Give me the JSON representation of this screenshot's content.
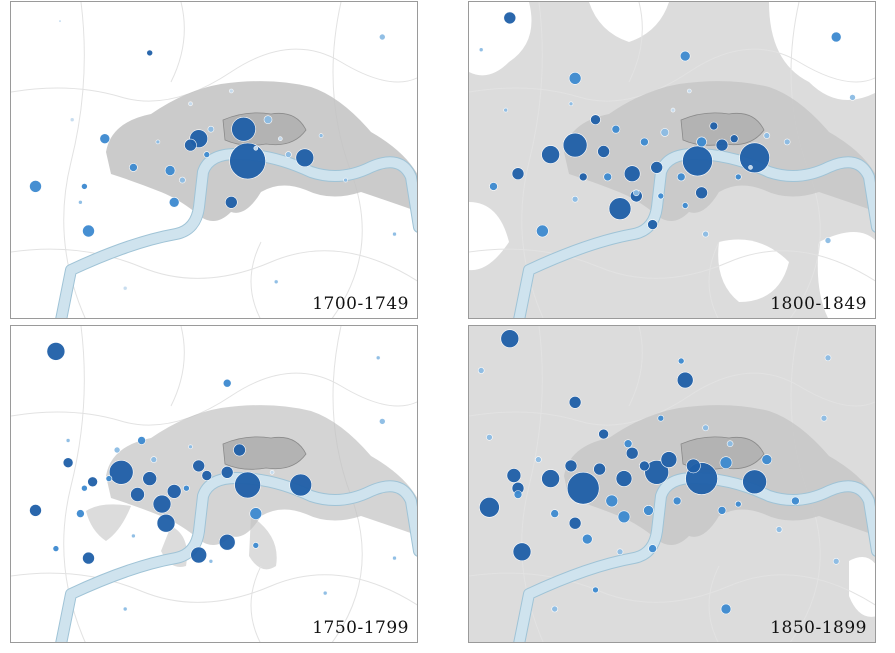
{
  "colors": {
    "river": "#cfe3ee",
    "river_edge": "#9fc3d6",
    "city_core": "#c2c2c2",
    "urban_light": "#dcdcdc",
    "background": "#ffffff",
    "dark_blue": "#1f5fa8",
    "mid_blue": "#3d8ad0",
    "light_blue": "#8cbce4",
    "pale_blue": "#c6dcef"
  },
  "panels": [
    {
      "id": "p1700",
      "label": "1700-1749",
      "urbanization": "low",
      "points": [
        [
          0.34,
          0.16,
          3,
          "dark"
        ],
        [
          0.12,
          0.06,
          1,
          "light"
        ],
        [
          0.58,
          0.5,
          18,
          "dark"
        ],
        [
          0.57,
          0.4,
          12,
          "dark"
        ],
        [
          0.46,
          0.43,
          9,
          "dark"
        ],
        [
          0.44,
          0.45,
          6,
          "dark"
        ],
        [
          0.72,
          0.49,
          9,
          "dark"
        ],
        [
          0.54,
          0.63,
          6,
          "dark"
        ],
        [
          0.23,
          0.43,
          5,
          "mid"
        ],
        [
          0.06,
          0.58,
          6,
          "mid"
        ],
        [
          0.18,
          0.58,
          3,
          "mid"
        ],
        [
          0.19,
          0.72,
          6,
          "mid"
        ],
        [
          0.4,
          0.63,
          5,
          "mid"
        ],
        [
          0.39,
          0.53,
          5,
          "mid"
        ],
        [
          0.3,
          0.52,
          4,
          "mid"
        ],
        [
          0.17,
          0.63,
          2,
          "light"
        ],
        [
          0.42,
          0.56,
          3,
          "light"
        ],
        [
          0.63,
          0.37,
          4,
          "light"
        ],
        [
          0.68,
          0.48,
          3,
          "light"
        ],
        [
          0.6,
          0.46,
          2,
          "pale"
        ],
        [
          0.36,
          0.44,
          2,
          "light"
        ],
        [
          0.49,
          0.4,
          3,
          "light"
        ],
        [
          0.66,
          0.43,
          2,
          "pale"
        ],
        [
          0.82,
          0.56,
          2,
          "light"
        ],
        [
          0.91,
          0.11,
          3,
          "light"
        ],
        [
          0.94,
          0.73,
          2,
          "light"
        ],
        [
          0.65,
          0.88,
          2,
          "light"
        ],
        [
          0.15,
          0.37,
          2,
          "pale"
        ],
        [
          0.28,
          0.9,
          2,
          "pale"
        ],
        [
          0.54,
          0.28,
          2,
          "pale"
        ],
        [
          0.76,
          0.42,
          2,
          "light"
        ],
        [
          0.48,
          0.48,
          3,
          "mid"
        ],
        [
          0.44,
          0.32,
          2,
          "pale"
        ]
      ]
    },
    {
      "id": "p1800",
      "label": "1800-1849",
      "urbanization": "high",
      "points": [
        [
          0.1,
          0.05,
          6,
          "dark"
        ],
        [
          0.9,
          0.11,
          5,
          "mid"
        ],
        [
          0.26,
          0.24,
          6,
          "mid"
        ],
        [
          0.53,
          0.17,
          5,
          "mid"
        ],
        [
          0.26,
          0.45,
          12,
          "dark"
        ],
        [
          0.2,
          0.48,
          9,
          "dark"
        ],
        [
          0.33,
          0.47,
          6,
          "dark"
        ],
        [
          0.4,
          0.54,
          8,
          "dark"
        ],
        [
          0.46,
          0.52,
          6,
          "dark"
        ],
        [
          0.56,
          0.5,
          15,
          "dark"
        ],
        [
          0.7,
          0.49,
          15,
          "dark"
        ],
        [
          0.62,
          0.45,
          6,
          "dark"
        ],
        [
          0.57,
          0.44,
          5,
          "mid"
        ],
        [
          0.37,
          0.65,
          11,
          "dark"
        ],
        [
          0.41,
          0.61,
          6,
          "dark"
        ],
        [
          0.57,
          0.6,
          6,
          "dark"
        ],
        [
          0.45,
          0.7,
          5,
          "dark"
        ],
        [
          0.12,
          0.54,
          6,
          "dark"
        ],
        [
          0.06,
          0.58,
          4,
          "mid"
        ],
        [
          0.18,
          0.72,
          6,
          "mid"
        ],
        [
          0.31,
          0.37,
          5,
          "dark"
        ],
        [
          0.36,
          0.4,
          4,
          "mid"
        ],
        [
          0.43,
          0.44,
          4,
          "mid"
        ],
        [
          0.48,
          0.41,
          4,
          "light"
        ],
        [
          0.6,
          0.39,
          4,
          "dark"
        ],
        [
          0.65,
          0.43,
          4,
          "dark"
        ],
        [
          0.66,
          0.55,
          3,
          "mid"
        ],
        [
          0.52,
          0.55,
          4,
          "mid"
        ],
        [
          0.34,
          0.55,
          4,
          "mid"
        ],
        [
          0.28,
          0.55,
          4,
          "dark"
        ],
        [
          0.47,
          0.61,
          3,
          "mid"
        ],
        [
          0.41,
          0.6,
          3,
          "light"
        ],
        [
          0.26,
          0.62,
          3,
          "light"
        ],
        [
          0.88,
          0.75,
          3,
          "light"
        ],
        [
          0.94,
          0.3,
          3,
          "light"
        ],
        [
          0.03,
          0.15,
          2,
          "light"
        ],
        [
          0.09,
          0.34,
          2,
          "light"
        ],
        [
          0.53,
          0.64,
          3,
          "mid"
        ],
        [
          0.73,
          0.42,
          3,
          "light"
        ],
        [
          0.78,
          0.44,
          3,
          "light"
        ],
        [
          0.54,
          0.28,
          2,
          "pale"
        ],
        [
          0.25,
          0.32,
          2,
          "light"
        ],
        [
          0.5,
          0.34,
          2,
          "pale"
        ],
        [
          0.69,
          0.52,
          2,
          "pale"
        ],
        [
          0.58,
          0.73,
          3,
          "light"
        ]
      ]
    },
    {
      "id": "p1750",
      "label": "1750-1799",
      "urbanization": "medium",
      "points": [
        [
          0.11,
          0.08,
          9,
          "dark"
        ],
        [
          0.9,
          0.1,
          2,
          "light"
        ],
        [
          0.53,
          0.18,
          4,
          "mid"
        ],
        [
          0.91,
          0.3,
          3,
          "light"
        ],
        [
          0.14,
          0.43,
          5,
          "dark"
        ],
        [
          0.27,
          0.46,
          12,
          "dark"
        ],
        [
          0.34,
          0.48,
          7,
          "dark"
        ],
        [
          0.31,
          0.53,
          7,
          "dark"
        ],
        [
          0.37,
          0.56,
          9,
          "dark"
        ],
        [
          0.4,
          0.52,
          7,
          "dark"
        ],
        [
          0.38,
          0.62,
          9,
          "dark"
        ],
        [
          0.46,
          0.44,
          6,
          "dark"
        ],
        [
          0.48,
          0.47,
          5,
          "dark"
        ],
        [
          0.53,
          0.46,
          6,
          "dark"
        ],
        [
          0.58,
          0.5,
          13,
          "dark"
        ],
        [
          0.71,
          0.5,
          11,
          "dark"
        ],
        [
          0.56,
          0.39,
          6,
          "dark"
        ],
        [
          0.6,
          0.59,
          6,
          "mid"
        ],
        [
          0.53,
          0.68,
          8,
          "dark"
        ],
        [
          0.46,
          0.72,
          8,
          "dark"
        ],
        [
          0.2,
          0.49,
          5,
          "dark"
        ],
        [
          0.06,
          0.58,
          6,
          "dark"
        ],
        [
          0.17,
          0.59,
          4,
          "mid"
        ],
        [
          0.19,
          0.73,
          6,
          "dark"
        ],
        [
          0.11,
          0.7,
          3,
          "mid"
        ],
        [
          0.3,
          0.66,
          2,
          "light"
        ],
        [
          0.43,
          0.51,
          3,
          "mid"
        ],
        [
          0.44,
          0.38,
          2,
          "light"
        ],
        [
          0.32,
          0.36,
          4,
          "mid"
        ],
        [
          0.26,
          0.39,
          3,
          "light"
        ],
        [
          0.35,
          0.42,
          3,
          "light"
        ],
        [
          0.49,
          0.74,
          2,
          "light"
        ],
        [
          0.64,
          0.46,
          2,
          "pale"
        ],
        [
          0.14,
          0.36,
          2,
          "light"
        ],
        [
          0.28,
          0.89,
          2,
          "light"
        ],
        [
          0.77,
          0.84,
          2,
          "light"
        ],
        [
          0.94,
          0.73,
          2,
          "light"
        ],
        [
          0.18,
          0.51,
          3,
          "mid"
        ],
        [
          0.24,
          0.48,
          3,
          "mid"
        ],
        [
          0.6,
          0.69,
          3,
          "mid"
        ]
      ]
    },
    {
      "id": "p1850",
      "label": "1850-1899",
      "urbanization": "full",
      "points": [
        [
          0.1,
          0.04,
          9,
          "dark"
        ],
        [
          0.53,
          0.17,
          8,
          "dark"
        ],
        [
          0.26,
          0.24,
          6,
          "dark"
        ],
        [
          0.52,
          0.11,
          3,
          "mid"
        ],
        [
          0.88,
          0.1,
          3,
          "light"
        ],
        [
          0.87,
          0.29,
          3,
          "light"
        ],
        [
          0.05,
          0.57,
          10,
          "dark"
        ],
        [
          0.11,
          0.47,
          7,
          "dark"
        ],
        [
          0.12,
          0.51,
          6,
          "dark"
        ],
        [
          0.13,
          0.71,
          9,
          "dark"
        ],
        [
          0.12,
          0.53,
          4,
          "mid"
        ],
        [
          0.2,
          0.48,
          9,
          "dark"
        ],
        [
          0.28,
          0.51,
          16,
          "dark"
        ],
        [
          0.25,
          0.44,
          6,
          "dark"
        ],
        [
          0.32,
          0.45,
          6,
          "dark"
        ],
        [
          0.38,
          0.48,
          8,
          "dark"
        ],
        [
          0.4,
          0.4,
          6,
          "dark"
        ],
        [
          0.43,
          0.44,
          5,
          "dark"
        ],
        [
          0.46,
          0.46,
          12,
          "dark"
        ],
        [
          0.49,
          0.42,
          8,
          "dark"
        ],
        [
          0.55,
          0.44,
          7,
          "dark"
        ],
        [
          0.57,
          0.48,
          16,
          "dark"
        ],
        [
          0.63,
          0.43,
          6,
          "mid"
        ],
        [
          0.7,
          0.49,
          12,
          "dark"
        ],
        [
          0.73,
          0.42,
          5,
          "mid"
        ],
        [
          0.35,
          0.55,
          6,
          "mid"
        ],
        [
          0.38,
          0.6,
          6,
          "mid"
        ],
        [
          0.26,
          0.62,
          6,
          "dark"
        ],
        [
          0.29,
          0.67,
          5,
          "mid"
        ],
        [
          0.21,
          0.59,
          4,
          "mid"
        ],
        [
          0.44,
          0.58,
          5,
          "mid"
        ],
        [
          0.51,
          0.55,
          4,
          "mid"
        ],
        [
          0.62,
          0.58,
          4,
          "mid"
        ],
        [
          0.66,
          0.56,
          3,
          "mid"
        ],
        [
          0.8,
          0.55,
          4,
          "mid"
        ],
        [
          0.45,
          0.7,
          4,
          "mid"
        ],
        [
          0.31,
          0.83,
          3,
          "mid"
        ],
        [
          0.37,
          0.71,
          3,
          "light"
        ],
        [
          0.63,
          0.89,
          5,
          "mid"
        ],
        [
          0.21,
          0.89,
          3,
          "light"
        ],
        [
          0.9,
          0.74,
          3,
          "light"
        ],
        [
          0.76,
          0.64,
          3,
          "light"
        ],
        [
          0.03,
          0.14,
          3,
          "light"
        ],
        [
          0.05,
          0.35,
          3,
          "light"
        ],
        [
          0.47,
          0.29,
          3,
          "mid"
        ],
        [
          0.33,
          0.34,
          5,
          "dark"
        ],
        [
          0.39,
          0.37,
          4,
          "mid"
        ],
        [
          0.58,
          0.32,
          3,
          "light"
        ],
        [
          0.64,
          0.37,
          3,
          "light"
        ],
        [
          0.17,
          0.42,
          3,
          "light"
        ]
      ]
    }
  ]
}
